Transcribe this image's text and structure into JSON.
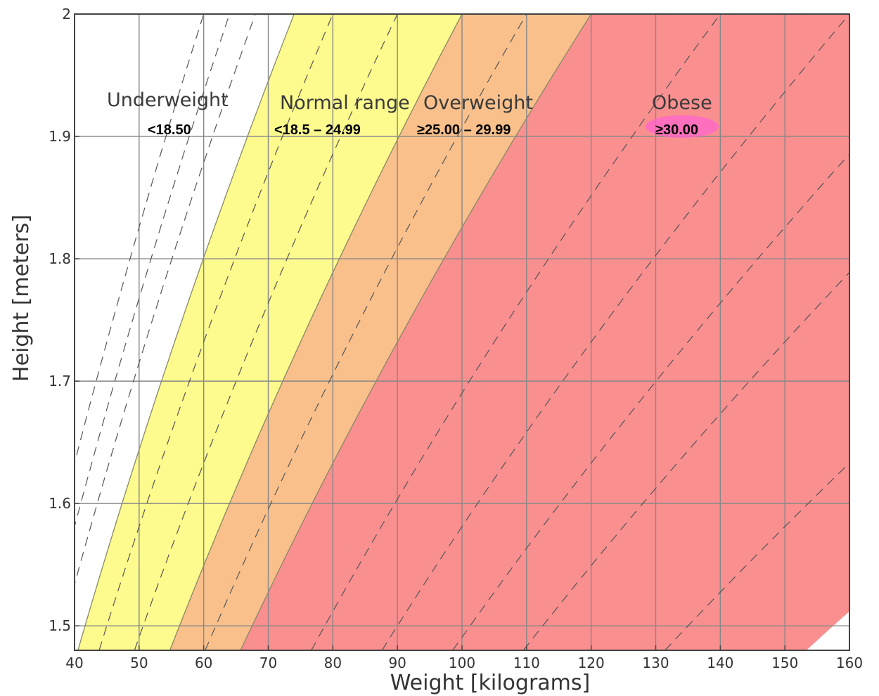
{
  "chart_data": {
    "type": "area",
    "xlabel": "Weight [kilograms]",
    "ylabel": "Height [meters]",
    "xlim": [
      40,
      160
    ],
    "ylim": [
      1.48,
      2.0
    ],
    "xticks": [
      "40",
      "50",
      "60",
      "70",
      "80",
      "90",
      "100",
      "110",
      "120",
      "130",
      "140",
      "150",
      "160"
    ],
    "yticks": [
      "1.5",
      "1.6",
      "1.7",
      "1.8",
      "1.9",
      "2"
    ],
    "grid": true,
    "bands": [
      {
        "category": "Underweight",
        "range_label": "<18.50",
        "bmi_min": 0,
        "bmi_max": 18.5,
        "color": "#ffffff"
      },
      {
        "category": "Normal range",
        "range_label": "<18.5 – 24.99",
        "bmi_min": 18.5,
        "bmi_max": 25,
        "color": "#fdfa8e"
      },
      {
        "category": "Overweight",
        "range_label": "≥25.00 – 29.99",
        "bmi_min": 25,
        "bmi_max": 30,
        "color": "#f9c08b"
      },
      {
        "category": "Obese",
        "range_label": "≥30.00",
        "bmi_min": 30,
        "bmi_max": 70,
        "color": "#fa8f8f"
      }
    ],
    "dashed_bmi_lines": [
      15,
      16,
      17,
      20,
      22.5,
      27.5,
      35,
      40,
      45,
      50,
      60
    ]
  },
  "colors": {
    "grid": "#888888",
    "axis": "#444444",
    "band_edge": "#888866",
    "dashed": "#555555",
    "obese_highlight": "#ff66cc"
  }
}
